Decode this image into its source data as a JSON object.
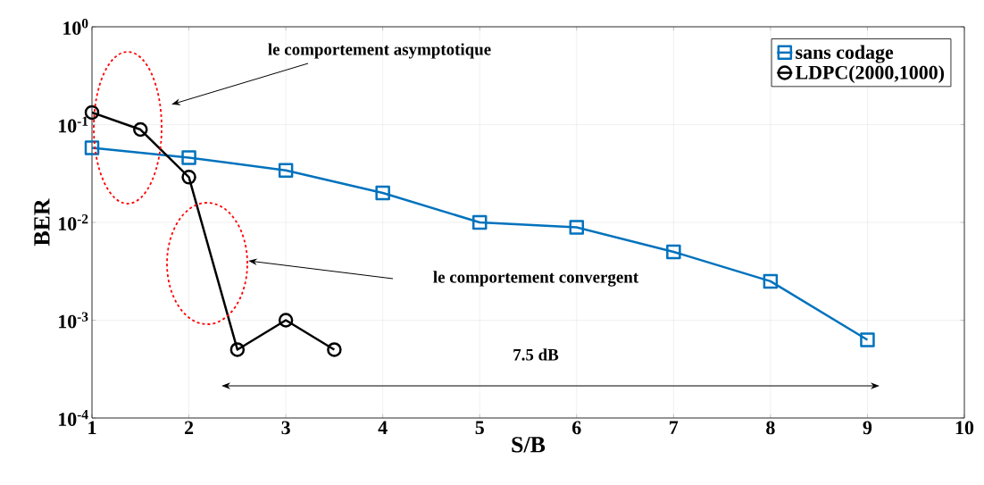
{
  "chart_data": {
    "type": "line",
    "xlabel": "S/B",
    "ylabel": "BER",
    "log": "y",
    "grid": true,
    "legend": "top right",
    "line_style": "solid",
    "xlim": [
      1,
      10
    ],
    "xticks": [
      1,
      2,
      3,
      4,
      5,
      6,
      7,
      8,
      9,
      10
    ],
    "ylim": [
      0.0001,
      1
    ],
    "yticks": [
      {
        "value": 0.0001,
        "label": "10$^{-4}$"
      },
      {
        "value": 0.001,
        "label": "10$^{-3}$"
      },
      {
        "value": 0.01,
        "label": "10$^{-2}$"
      },
      {
        "value": 0.1,
        "label": "10$^{-1}$"
      },
      {
        "value": 1,
        "label": "10$^{0}$"
      }
    ],
    "series": [
      {
        "name": "sans codage",
        "color": "#0072bd",
        "marker": "square",
        "x": [
          1,
          2,
          3,
          4,
          5,
          6,
          7,
          8,
          9
        ],
        "values": [
          0.058,
          0.046,
          0.034,
          0.02,
          0.01,
          0.0089,
          0.005,
          0.0025,
          0.00063
        ]
      },
      {
        "name": "LDPC(2000,1000)",
        "color": "#000000",
        "marker": "circle",
        "x": [
          1,
          1.5,
          2,
          2.5,
          3,
          3.5
        ],
        "values": [
          0.133,
          0.089,
          0.029,
          0.0005,
          0.001,
          0.0005
        ]
      }
    ],
    "annotations": [
      "le comportement asymptotique",
      "le comportement convergent",
      "7.5 dB"
    ]
  }
}
